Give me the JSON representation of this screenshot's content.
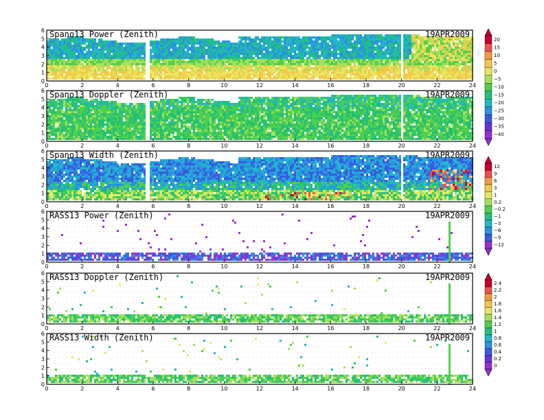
{
  "chart_data": [
    {
      "type": "heatmap",
      "title": "Spano13 Power (Zenith)",
      "date": "19APR2009",
      "x_ticks": [
        "0",
        "2",
        "4",
        "6",
        "8",
        "10",
        "12",
        "14",
        "16",
        "18",
        "20",
        "22",
        "24"
      ],
      "y_ticks": [
        "0",
        "1",
        "2",
        "3",
        "4",
        "5",
        "6"
      ],
      "xlim": [
        0,
        24
      ],
      "ylim": [
        0,
        6
      ],
      "colorbar": 0
    },
    {
      "type": "heatmap",
      "title": "Spano13 Doppler (Zenith)",
      "date": "19APR2009",
      "x_ticks": [
        "0",
        "2",
        "4",
        "6",
        "8",
        "10",
        "12",
        "14",
        "16",
        "18",
        "20",
        "22",
        "24"
      ],
      "y_ticks": [
        "0",
        "1",
        "2",
        "3",
        "4",
        "5",
        "6"
      ],
      "xlim": [
        0,
        24
      ],
      "ylim": [
        0,
        6
      ],
      "colorbar": 0
    },
    {
      "type": "heatmap",
      "title": "Spano13 Width (Zenith)",
      "date": "19APR2009",
      "x_ticks": [
        "0",
        "2",
        "4",
        "6",
        "8",
        "10",
        "12",
        "14",
        "16",
        "18",
        "20",
        "22",
        "24"
      ],
      "y_ticks": [
        "0",
        "1",
        "2",
        "3",
        "4",
        "5",
        "6"
      ],
      "xlim": [
        0,
        24
      ],
      "ylim": [
        0,
        6
      ],
      "colorbar": 1
    },
    {
      "type": "heatmap",
      "title": "RASS13 Power (Zenith)",
      "date": "19APR2009",
      "x_ticks": [
        "0",
        "2",
        "4",
        "6",
        "8",
        "10",
        "12",
        "14",
        "16",
        "18",
        "20",
        "22",
        "24"
      ],
      "y_ticks": [
        "0",
        "1",
        "2",
        "3",
        "4",
        "5",
        "6"
      ],
      "xlim": [
        0,
        24
      ],
      "ylim": [
        0,
        6
      ],
      "colorbar": 1
    },
    {
      "type": "heatmap",
      "title": "RASS13 Doppler (Zenith)",
      "date": "19APR2009",
      "x_ticks": [
        "0",
        "2",
        "4",
        "6",
        "8",
        "10",
        "12",
        "14",
        "16",
        "18",
        "20",
        "22",
        "24"
      ],
      "y_ticks": [
        "0",
        "1",
        "2",
        "3",
        "4",
        "5",
        "6"
      ],
      "xlim": [
        0,
        24
      ],
      "ylim": [
        0,
        6
      ],
      "colorbar": 2
    },
    {
      "type": "heatmap",
      "title": "RASS13 Width (Zenith)",
      "date": "19APR2009",
      "x_ticks": [
        "0",
        "2",
        "4",
        "6",
        "8",
        "10",
        "12",
        "14",
        "16",
        "18",
        "20",
        "22",
        "24"
      ],
      "y_ticks": [
        "0",
        "1",
        "2",
        "3",
        "4",
        "5",
        "6"
      ],
      "xlim": [
        0,
        24
      ],
      "ylim": [
        0,
        6
      ],
      "colorbar": 2
    }
  ],
  "colorbars": [
    {
      "labels": [
        "20",
        "15",
        "10",
        "5",
        "0",
        "−5",
        "−10",
        "−15",
        "−20",
        "−25",
        "−30",
        "−35",
        "−40"
      ],
      "colors": [
        "#c8002d",
        "#f0504a",
        "#f59a3c",
        "#f2c84a",
        "#e8e860",
        "#a6e05a",
        "#4fd04a",
        "#22c07a",
        "#20b8c8",
        "#2a90e6",
        "#3a5ae0",
        "#6a30d8",
        "#9830d0"
      ]
    },
    {
      "labels": [
        "12",
        "9",
        "6",
        "3",
        "1",
        "0.2",
        "−0.2",
        "−1",
        "−3",
        "−6",
        "−9",
        "−12"
      ],
      "colors": [
        "#c8002d",
        "#f0504a",
        "#f59a3c",
        "#f2c84a",
        "#e8e860",
        "#a6e05a",
        "#4fd04a",
        "#22c07a",
        "#20b8c8",
        "#2a90e6",
        "#3a5ae0",
        "#9830d0"
      ]
    },
    {
      "labels": [
        "2.4",
        "2.2",
        "2",
        "1.8",
        "1.6",
        "1.4",
        "1.2",
        "1",
        "0.8",
        "0.6",
        "0.4",
        "0.2",
        "0"
      ],
      "colors": [
        "#c8002d",
        "#f0504a",
        "#f59a3c",
        "#f2c84a",
        "#e8e860",
        "#a6e05a",
        "#4fd04a",
        "#22c07a",
        "#20b8c8",
        "#2a90e6",
        "#3a5ae0",
        "#6a30d8",
        "#9830d0"
      ]
    }
  ]
}
